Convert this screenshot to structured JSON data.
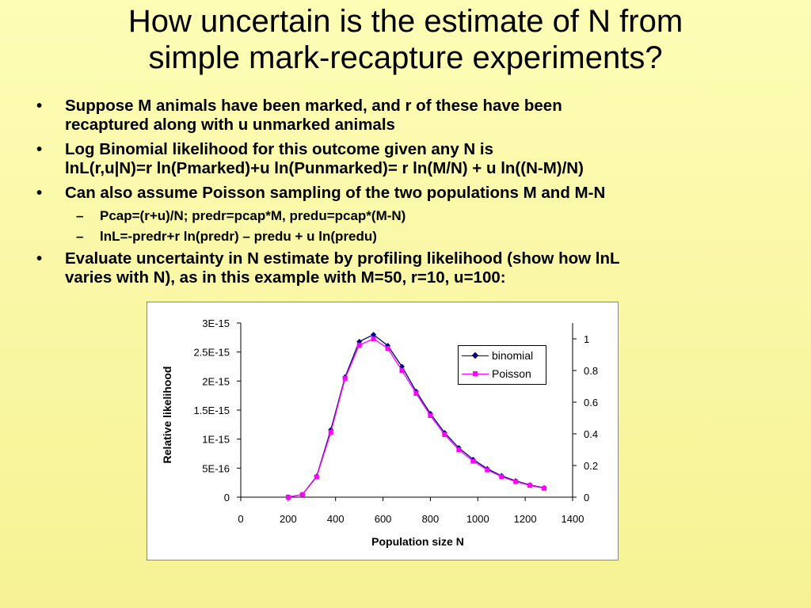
{
  "slide": {
    "title_line1": "How uncertain is the estimate of N from",
    "title_line2": "simple mark-recapture experiments?",
    "bullets": [
      {
        "line1": "Suppose M animals have been marked, and r of these have been",
        "line2": "recaptured along with u unmarked  animals"
      },
      {
        "line1": "Log Binomial likelihood for this outcome given any N is",
        "line2": "lnL(r,u|N)=r ln(Pmarked)+u ln(Punmarked)= r ln(M/N) + u ln((N-M)/N)"
      },
      {
        "line1": "Can also assume Poisson sampling of the two populations M and M-N",
        "line2": ""
      },
      {
        "line1": "Evaluate uncertainty in N estimate by profiling likelihood (show how lnL",
        "line2": "varies with N), as in this example with M=50, r=10, u=100:"
      }
    ],
    "sub_bullets": [
      "Pcap=(r+u)/N; predr=pcap*M, predu=pcap*(M-N)",
      "lnL=-predr+r ln(predr) – predu + u ln(predu)"
    ],
    "bullet_symbol": "•",
    "dash_symbol": "–"
  },
  "chart_data": {
    "type": "line",
    "xlabel": "Population size N",
    "ylabel": "Relative likelihood",
    "xlim": [
      0,
      1400
    ],
    "ylim_left": [
      0,
      3e-15
    ],
    "ylim_right": [
      0,
      1.1
    ],
    "x_ticks": [
      "0",
      "200",
      "400",
      "600",
      "800",
      "1000",
      "1200",
      "1400"
    ],
    "y_ticks_left": [
      "0",
      "5E-16",
      "1E-15",
      "1.5E-15",
      "2E-15",
      "2.5E-15",
      "3E-15"
    ],
    "y_ticks_right": [
      "0",
      "0.2",
      "0.4",
      "0.6",
      "0.8",
      "1"
    ],
    "legend_position": "right",
    "x": [
      200,
      260,
      320,
      380,
      440,
      500,
      560,
      620,
      680,
      740,
      800,
      860,
      920,
      980,
      1040,
      1100,
      1160,
      1220,
      1280
    ],
    "series": [
      {
        "name": "binomial",
        "color": "#00007f",
        "marker": "diamond",
        "axis": "left",
        "values": [
          1e-18,
          4.5e-17,
          3.6e-16,
          1.16e-15,
          2.07e-15,
          2.68e-15,
          2.8e-15,
          2.61e-15,
          2.25e-15,
          1.82e-15,
          1.44e-15,
          1.11e-15,
          8.5e-16,
          6.5e-16,
          4.9e-16,
          3.7e-16,
          2.8e-16,
          2.1e-16,
          1.6e-16
        ]
      },
      {
        "name": "Poisson",
        "color": "#ff00ff",
        "marker": "square",
        "axis": "right",
        "values": [
          0.0005,
          0.016,
          0.128,
          0.41,
          0.75,
          0.96,
          1.0,
          0.94,
          0.8,
          0.655,
          0.515,
          0.395,
          0.3,
          0.227,
          0.172,
          0.13,
          0.098,
          0.074,
          0.056
        ]
      }
    ]
  }
}
